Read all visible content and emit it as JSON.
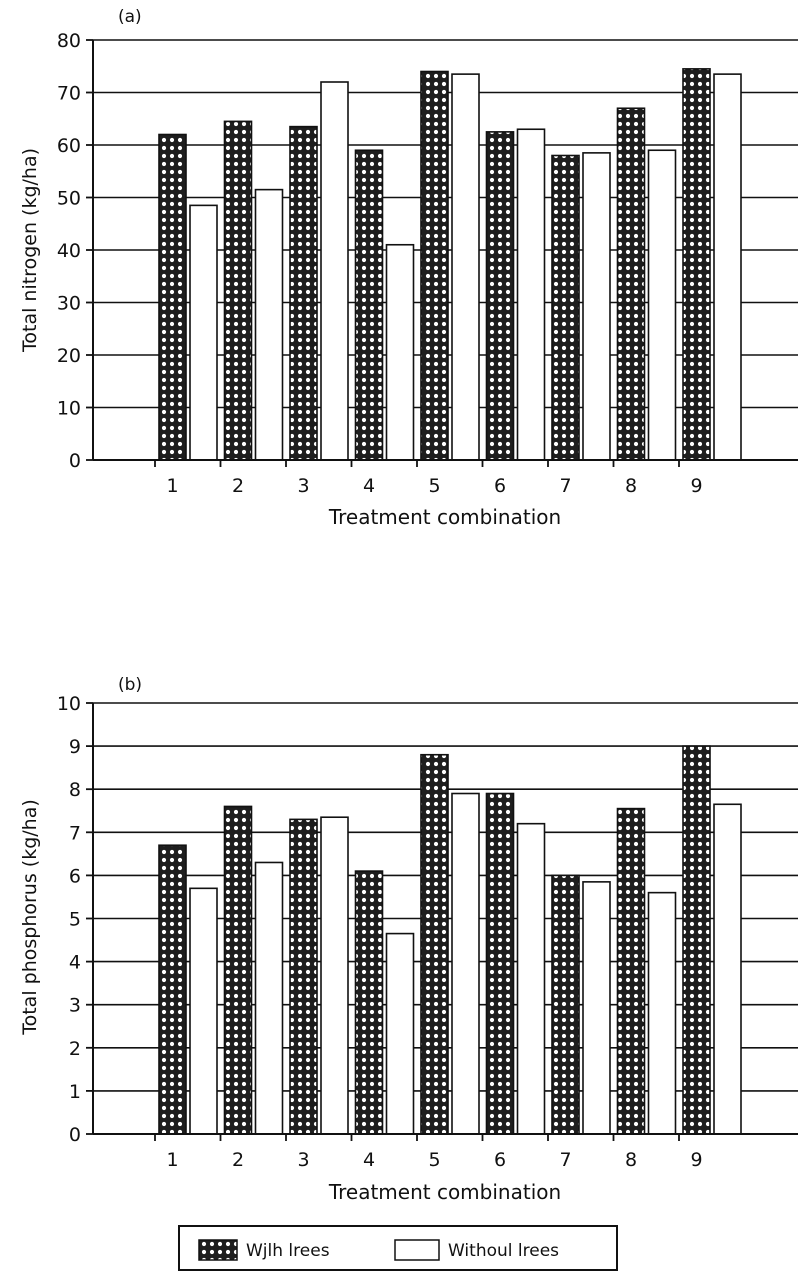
{
  "chart_data": [
    {
      "type": "bar",
      "panel_label": "(a)",
      "xlabel": "Treatment combination",
      "ylabel": "Total nitrogen (kg/ha)",
      "ylim": [
        0,
        80
      ],
      "yticks": [
        "0",
        "10",
        "20",
        "30",
        "40",
        "50",
        "60",
        "70",
        "80"
      ],
      "categories": [
        "1",
        "2",
        "3",
        "4",
        "5",
        "6",
        "7",
        "8",
        "9"
      ],
      "grid": true,
      "series": [
        {
          "name": "Wjlh lrees",
          "values": [
            62,
            64.5,
            63.5,
            59,
            74,
            62.5,
            58,
            67,
            74.5
          ]
        },
        {
          "name": "Without trees",
          "values": [
            48.5,
            51.5,
            72,
            41,
            73.5,
            63,
            58.5,
            59,
            73.5
          ]
        }
      ]
    },
    {
      "type": "bar",
      "panel_label": "(b)",
      "xlabel": "Treatment combination",
      "ylabel": "Total phosphorus (kg/ha)",
      "ylim": [
        0,
        10
      ],
      "yticks": [
        "0",
        "1",
        "2",
        "3",
        "4",
        "5",
        "6",
        "7",
        "8",
        "9",
        "10"
      ],
      "categories": [
        "1",
        "2",
        "3",
        "4",
        "5",
        "6",
        "7",
        "8",
        "9"
      ],
      "grid": true,
      "series": [
        {
          "name": "Wjlh lrees",
          "values": [
            6.7,
            7.6,
            7.3,
            6.1,
            8.8,
            7.9,
            6.0,
            7.55,
            9.0
          ]
        },
        {
          "name": "Without trees",
          "values": [
            5.7,
            6.3,
            7.35,
            4.65,
            7.9,
            7.2,
            5.85,
            5.6,
            7.65
          ]
        }
      ]
    }
  ],
  "legend": {
    "with_label": "Wjlh lrees",
    "without_label": "Withoul lrees"
  },
  "colors": {
    "with_fill": "#1e1e1e",
    "with_dots": "#ffffff",
    "without_fill": "#ffffff",
    "lines": "#111111"
  }
}
